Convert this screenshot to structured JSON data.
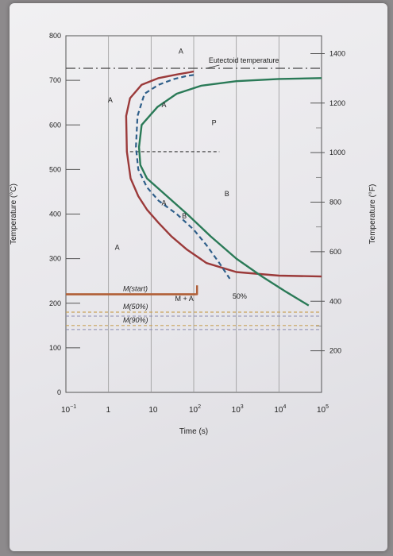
{
  "chart_data": {
    "type": "line",
    "title": "",
    "xlabel": "Time (s)",
    "ylabel": "Temperature (°C)",
    "ylabel_right": "Temperature (°F)",
    "x_scale": "log",
    "xlim": [
      0.1,
      100000
    ],
    "ylim": [
      0,
      800
    ],
    "x_ticks": [
      {
        "value": 0.1,
        "label": "10",
        "exp": "−1"
      },
      {
        "value": 1,
        "label": "1",
        "exp": ""
      },
      {
        "value": 10,
        "label": "10",
        "exp": ""
      },
      {
        "value": 100,
        "label": "10",
        "exp": "2"
      },
      {
        "value": 1000,
        "label": "10",
        "exp": "3"
      },
      {
        "value": 10000,
        "label": "10",
        "exp": "4"
      },
      {
        "value": 100000,
        "label": "10",
        "exp": "5"
      }
    ],
    "y_ticks": [
      0,
      100,
      200,
      300,
      400,
      500,
      600,
      700,
      800
    ],
    "y_ticks_right": [
      200,
      400,
      600,
      800,
      1000,
      1200,
      1400
    ],
    "series": [
      {
        "name": "",
        "color": "#9b3a3a",
        "style": "solid",
        "x": [
          100,
          80,
          40,
          15,
          6,
          3.2,
          2.6,
          2.7,
          3.3,
          5,
          8,
          15,
          30,
          70,
          200,
          1000,
          10000,
          100000
        ],
        "y": [
          720,
          718,
          713,
          705,
          690,
          660,
          620,
          540,
          480,
          440,
          410,
          380,
          350,
          320,
          290,
          270,
          262,
          260
        ]
      },
      {
        "name": "",
        "color": "#2f5f8a",
        "style": "dashed",
        "x": [
          100,
          70,
          35,
          15,
          7,
          4.8,
          4.4,
          5,
          8,
          15,
          40,
          100,
          200,
          400,
          700
        ],
        "y": [
          712,
          710,
          703,
          690,
          670,
          620,
          550,
          500,
          460,
          430,
          400,
          365,
          330,
          290,
          255
        ]
      },
      {
        "name": "",
        "color": "#2a7a57",
        "style": "solid",
        "x": [
          100000,
          10000,
          1000,
          150,
          40,
          14,
          6,
          5.2,
          5.6,
          8,
          18,
          70,
          250,
          1000,
          4000,
          15000,
          50000
        ],
        "y": [
          705,
          703,
          698,
          688,
          670,
          640,
          600,
          550,
          510,
          480,
          450,
          400,
          350,
          300,
          260,
          225,
          195
        ]
      },
      {
        "name": "",
        "color": "#b0603a",
        "style": "solid",
        "x": [
          0.1,
          110,
          120,
          120
        ],
        "y": [
          220,
          220,
          220,
          240
        ]
      }
    ],
    "reference_lines": [
      {
        "label": "Eutectoid temperature",
        "y": 727,
        "style": "dash-dot"
      },
      {
        "label": "M(start)",
        "y": 220,
        "style": "solid"
      },
      {
        "label": "M(50%)",
        "y": 180,
        "style": "dashed"
      },
      {
        "label": "M(90%)",
        "y": 150,
        "style": "dashed"
      },
      {
        "label": "",
        "y": 540,
        "style": "dashed"
      }
    ],
    "annotations": [
      {
        "text": "A",
        "x": 50,
        "y": 760
      },
      {
        "text": "A",
        "x": 1.1,
        "y": 650
      },
      {
        "text": "A",
        "x": 1.6,
        "y": 320
      },
      {
        "text": "A",
        "x": 20,
        "y": 640
      },
      {
        "text": "P",
        "x": 300,
        "y": 600
      },
      {
        "text": "B",
        "x": 600,
        "y": 440
      },
      {
        "text": "A",
        "x": 20,
        "y": 420
      },
      {
        "text": "B",
        "x": 60,
        "y": 390
      },
      {
        "text": "M + A",
        "x": 60,
        "y": 205
      },
      {
        "text": "50%",
        "x": 1200,
        "y": 210
      }
    ]
  }
}
